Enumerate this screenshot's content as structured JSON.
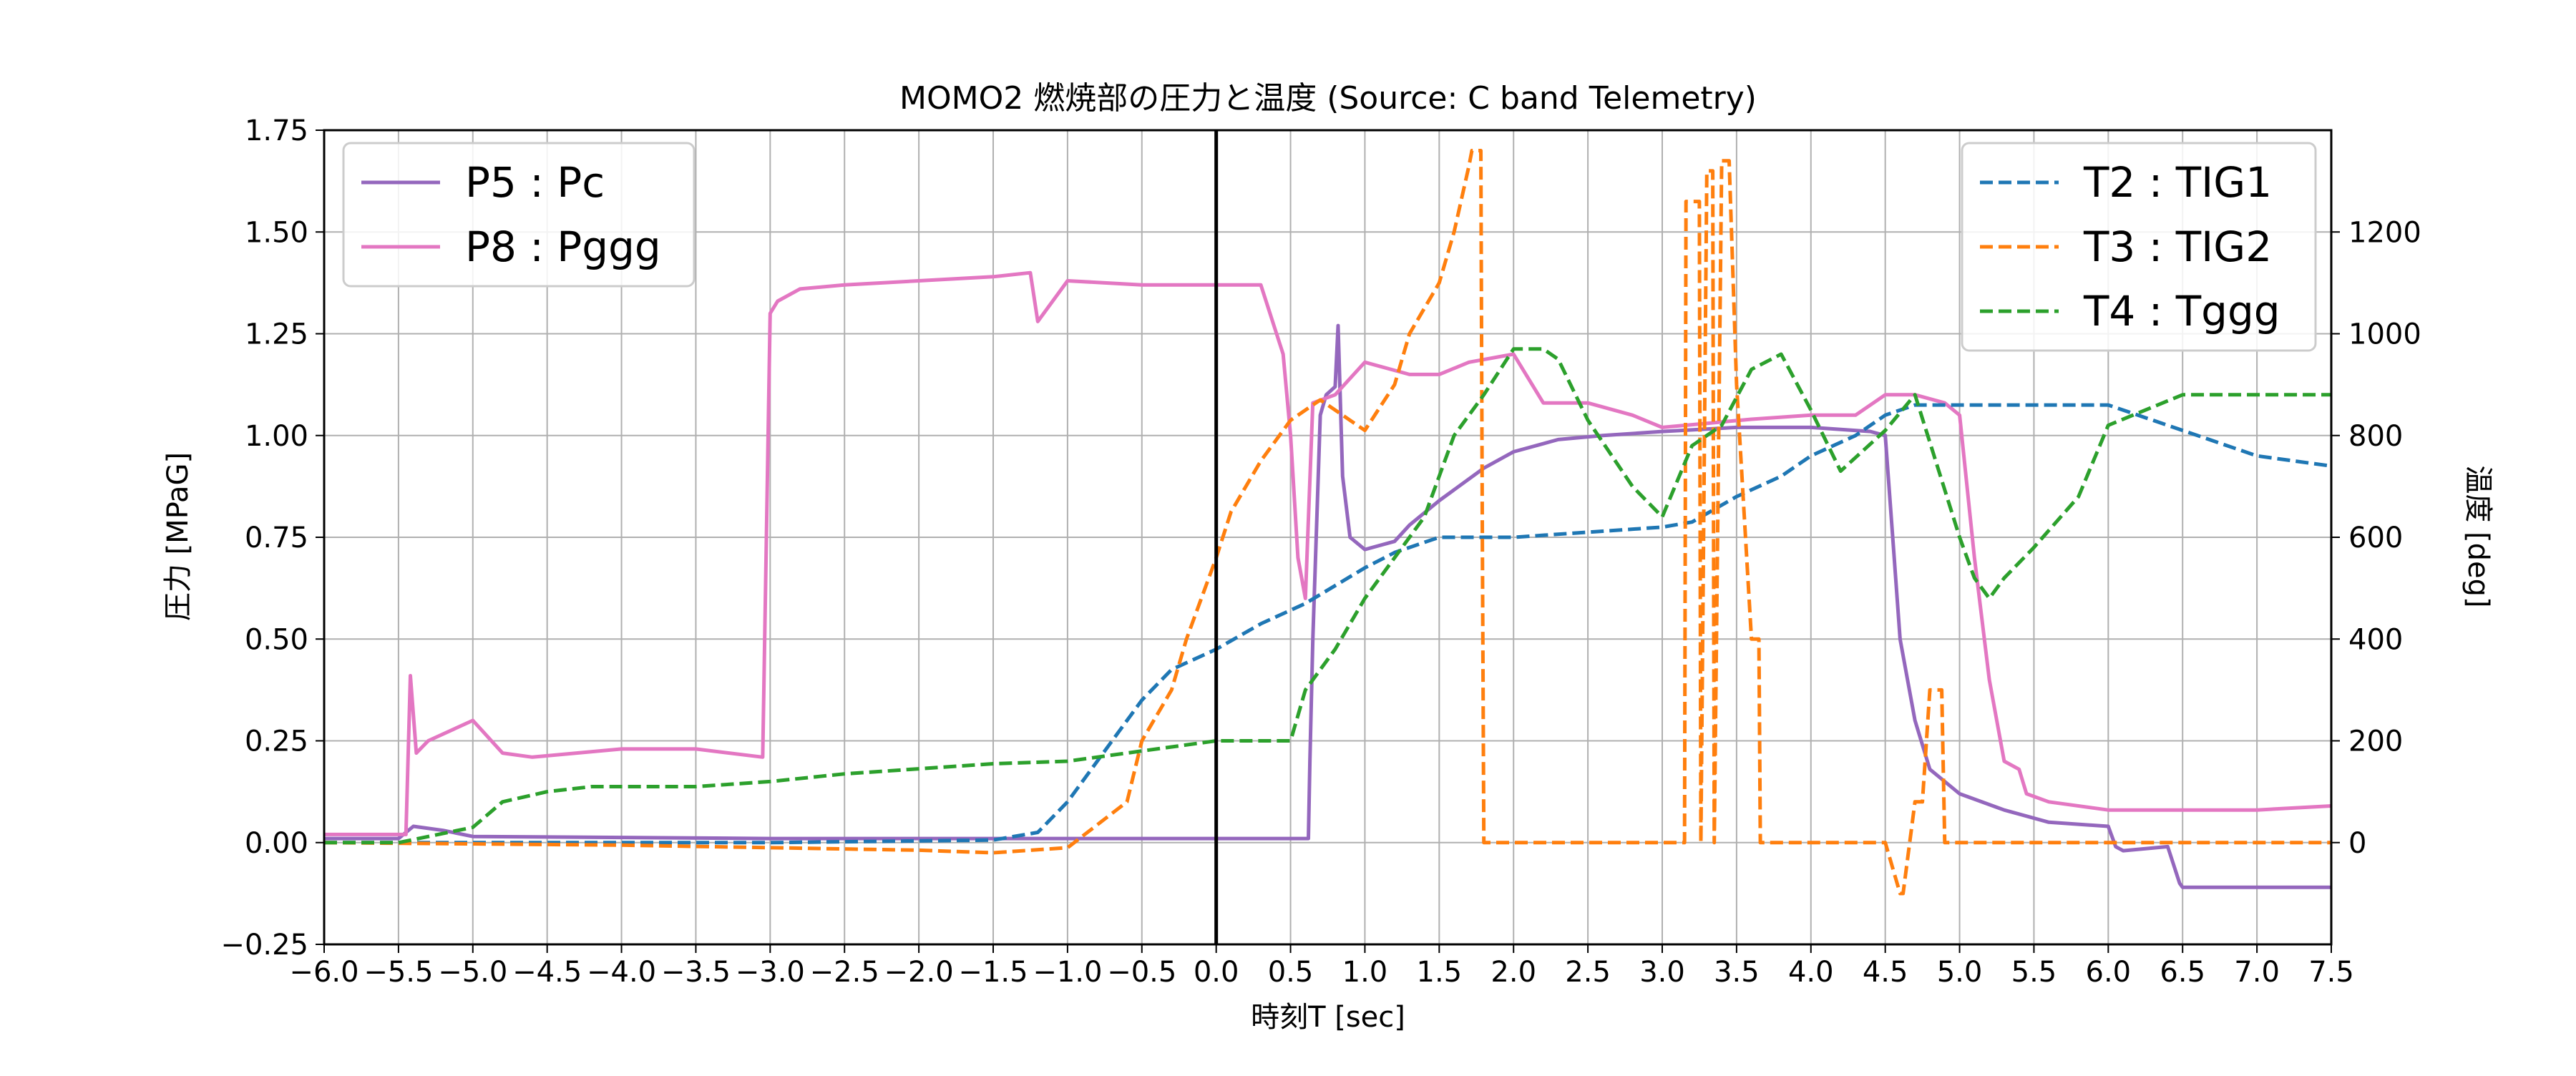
{
  "chart_data": {
    "type": "line",
    "title": "MOMO2 燃焼部の圧力と温度 (Source: C band Telemetry)",
    "xlabel": "時刻T [sec]",
    "ylabel_left": "圧力 [MPaG]",
    "ylabel_right": "温度 [deg]",
    "xlim": [
      -6.0,
      7.5
    ],
    "ylim_left": [
      -0.25,
      1.75
    ],
    "ylim_right": [
      -200,
      1400
    ],
    "x_ticks": [
      "-6.0",
      "-5.5",
      "-5.0",
      "-4.5",
      "-4.0",
      "-3.5",
      "-3.0",
      "-2.5",
      "-2.0",
      "-1.5",
      "-1.0",
      "-0.5",
      "0.0",
      "0.5",
      "1.0",
      "1.5",
      "2.0",
      "2.5",
      "3.0",
      "3.5",
      "4.0",
      "4.5",
      "5.0",
      "5.5",
      "6.0",
      "6.5",
      "7.0",
      "7.5"
    ],
    "y_ticks_left": [
      "-0.25",
      "0.00",
      "0.25",
      "0.50",
      "0.75",
      "1.00",
      "1.25",
      "1.50",
      "1.75"
    ],
    "y_ticks_right": [
      "0",
      "200",
      "400",
      "600",
      "800",
      "1000",
      "1200"
    ],
    "grid": true,
    "vertical_marker_x": 0.0,
    "legend_left": {
      "placement": "upper-left",
      "entries": [
        "P5 : Pc",
        "P8 : Pggg"
      ]
    },
    "legend_right": {
      "placement": "upper-right",
      "entries": [
        "T2 : TIG1",
        "T3 : TIG2",
        "T4 : Tggg"
      ]
    },
    "series": [
      {
        "name": "P5 : Pc",
        "axis": "left",
        "style": "solid",
        "color": "#9467bd",
        "x": [
          -6.0,
          -5.5,
          -5.4,
          -5.2,
          -5.0,
          -3.0,
          -1.0,
          0.0,
          0.62,
          0.63,
          0.65,
          0.7,
          0.74,
          0.8,
          0.82,
          0.85,
          0.9,
          1.0,
          1.2,
          1.3,
          1.5,
          1.8,
          2.0,
          2.3,
          2.6,
          3.0,
          3.5,
          4.0,
          4.4,
          4.5,
          4.55,
          4.6,
          4.7,
          4.8,
          5.0,
          5.3,
          5.6,
          6.0,
          6.05,
          6.1,
          6.4,
          6.48,
          6.5,
          7.0,
          7.5
        ],
        "y": [
          0.01,
          0.01,
          0.04,
          0.03,
          0.015,
          0.01,
          0.01,
          0.01,
          0.01,
          0.2,
          0.5,
          1.05,
          1.1,
          1.12,
          1.27,
          0.9,
          0.75,
          0.72,
          0.74,
          0.78,
          0.84,
          0.92,
          0.96,
          0.99,
          1.0,
          1.01,
          1.02,
          1.02,
          1.01,
          1.0,
          0.75,
          0.5,
          0.3,
          0.18,
          0.12,
          0.08,
          0.05,
          0.04,
          -0.01,
          -0.02,
          -0.01,
          -0.1,
          -0.11,
          -0.11,
          -0.11
        ]
      },
      {
        "name": "P8 : Pggg",
        "axis": "left",
        "style": "solid",
        "color": "#e377c2",
        "x": [
          -6.0,
          -5.45,
          -5.42,
          -5.38,
          -5.3,
          -5.0,
          -4.8,
          -4.6,
          -4.0,
          -3.5,
          -3.05,
          -3.0,
          -2.95,
          -2.8,
          -2.5,
          -2.0,
          -1.5,
          -1.25,
          -1.2,
          -1.0,
          -0.5,
          0.0,
          0.3,
          0.45,
          0.5,
          0.55,
          0.6,
          0.65,
          0.8,
          1.0,
          1.3,
          1.5,
          1.7,
          2.0,
          2.2,
          2.5,
          2.8,
          3.0,
          3.3,
          3.6,
          4.0,
          4.3,
          4.5,
          4.7,
          4.9,
          5.0,
          5.1,
          5.2,
          5.3,
          5.4,
          5.45,
          5.6,
          6.0,
          6.5,
          7.0,
          7.5
        ],
        "y": [
          0.02,
          0.02,
          0.41,
          0.22,
          0.25,
          0.3,
          0.22,
          0.21,
          0.23,
          0.23,
          0.21,
          1.3,
          1.33,
          1.36,
          1.37,
          1.38,
          1.39,
          1.4,
          1.28,
          1.38,
          1.37,
          1.37,
          1.37,
          1.2,
          1.0,
          0.7,
          0.6,
          1.08,
          1.1,
          1.18,
          1.15,
          1.15,
          1.18,
          1.2,
          1.08,
          1.08,
          1.05,
          1.02,
          1.03,
          1.04,
          1.05,
          1.05,
          1.1,
          1.1,
          1.08,
          1.05,
          0.7,
          0.4,
          0.2,
          0.18,
          0.12,
          0.1,
          0.08,
          0.08,
          0.08,
          0.09
        ]
      },
      {
        "name": "T2 : TIG1",
        "axis": "right",
        "style": "dashed",
        "color": "#1f77b4",
        "x": [
          -6.0,
          -3.0,
          -1.5,
          -1.2,
          -1.0,
          -0.8,
          -0.5,
          -0.3,
          0.0,
          0.3,
          0.6,
          1.0,
          1.2,
          1.5,
          2.0,
          2.5,
          3.0,
          3.2,
          3.5,
          3.8,
          4.0,
          4.3,
          4.5,
          4.7,
          5.0,
          5.5,
          6.0,
          6.5,
          7.0,
          7.5
        ],
        "y": [
          0,
          0,
          5,
          20,
          80,
          160,
          280,
          340,
          380,
          430,
          470,
          540,
          570,
          600,
          600,
          610,
          620,
          630,
          680,
          720,
          760,
          800,
          840,
          860,
          860,
          860,
          860,
          810,
          760,
          740
        ]
      },
      {
        "name": "T3 : TIG2",
        "axis": "right",
        "style": "dashed",
        "color": "#ff7f0e",
        "x": [
          -6.0,
          -4.0,
          -2.0,
          -1.5,
          -1.0,
          -0.6,
          -0.5,
          -0.3,
          -0.2,
          0.0,
          0.1,
          0.3,
          0.5,
          0.7,
          0.9,
          1.0,
          1.2,
          1.3,
          1.5,
          1.6,
          1.7,
          1.72,
          1.78,
          1.79,
          1.8,
          3.15,
          3.16,
          3.2,
          3.25,
          3.26,
          3.3,
          3.34,
          3.35,
          3.4,
          3.45,
          3.5,
          3.55,
          3.6,
          3.65,
          3.66,
          3.7,
          4.0,
          4.5,
          4.6,
          4.62,
          4.7,
          4.75,
          4.8,
          4.85,
          4.88,
          4.9,
          5.5,
          6.0,
          7.0,
          7.5
        ],
        "y": [
          0,
          -5,
          -15,
          -20,
          -10,
          80,
          200,
          300,
          400,
          560,
          650,
          750,
          830,
          870,
          830,
          810,
          900,
          1000,
          1100,
          1200,
          1330,
          1360,
          1360,
          600,
          0,
          0,
          1260,
          1260,
          1260,
          0,
          1320,
          1320,
          0,
          1340,
          1340,
          900,
          650,
          400,
          400,
          0,
          0,
          0,
          0,
          -100,
          -100,
          80,
          80,
          300,
          300,
          300,
          0,
          0,
          0,
          0,
          0
        ]
      },
      {
        "name": "T4 : Tggg",
        "axis": "right",
        "style": "dashed",
        "color": "#2ca02c",
        "x": [
          -6.0,
          -5.5,
          -5.0,
          -4.8,
          -4.5,
          -4.2,
          -3.5,
          -3.0,
          -2.5,
          -2.0,
          -1.5,
          -1.0,
          -0.5,
          0.0,
          0.5,
          0.6,
          0.8,
          1.0,
          1.2,
          1.4,
          1.5,
          1.6,
          1.8,
          2.0,
          2.2,
          2.3,
          2.5,
          2.8,
          3.0,
          3.2,
          3.4,
          3.6,
          3.8,
          4.0,
          4.2,
          4.5,
          4.7,
          5.0,
          5.1,
          5.2,
          5.3,
          5.5,
          5.8,
          6.0,
          6.5,
          7.0,
          7.5
        ],
        "y": [
          0,
          0,
          30,
          80,
          100,
          110,
          110,
          120,
          135,
          145,
          155,
          160,
          180,
          200,
          200,
          300,
          380,
          480,
          560,
          640,
          720,
          800,
          880,
          970,
          970,
          950,
          830,
          700,
          640,
          780,
          820,
          930,
          960,
          850,
          730,
          810,
          880,
          600,
          520,
          480,
          520,
          580,
          680,
          820,
          880,
          880,
          880
        ]
      }
    ]
  }
}
